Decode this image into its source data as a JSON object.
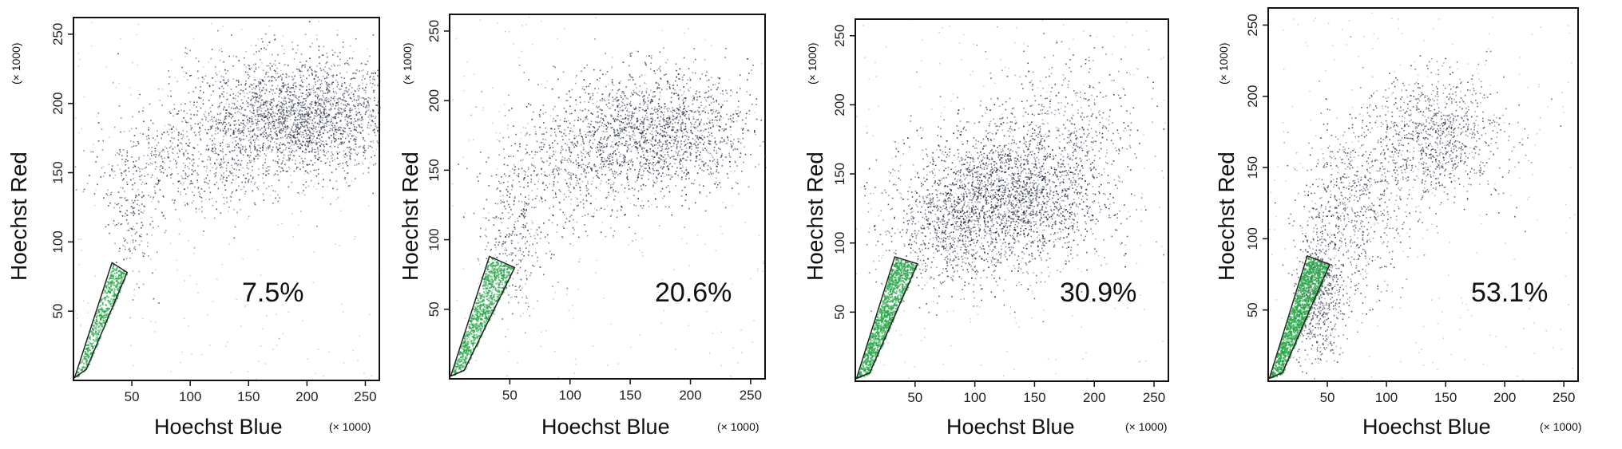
{
  "chart_data": [
    {
      "type": "scatter",
      "xlabel": "Hoechst Blue",
      "ylabel": "Hoechst Red",
      "x_multiplier": "(× 1000)",
      "y_multiplier": "(× 1000)",
      "xlim": [
        0,
        262
      ],
      "ylim": [
        0,
        262
      ],
      "xticks": [
        50,
        100,
        150,
        200,
        250
      ],
      "yticks": [
        50,
        100,
        150,
        200,
        250
      ],
      "gate_percent": "7.5%",
      "gate_polygon": [
        [
          1,
          2
        ],
        [
          33,
          85
        ],
        [
          46,
          78
        ],
        [
          11,
          8
        ]
      ],
      "gate_color": "#2aa84a",
      "dot_color": "#1f2430",
      "clusters": [
        {
          "center": [
            190,
            190
          ],
          "spread": [
            45,
            22
          ],
          "count": 2600
        },
        {
          "center": [
            95,
            155
          ],
          "spread": [
            40,
            20
          ],
          "count": 500
        },
        {
          "center": [
            50,
            120
          ],
          "spread": [
            10,
            25
          ],
          "count": 180
        }
      ]
    },
    {
      "type": "scatter",
      "xlabel": "Hoechst Blue",
      "ylabel": "Hoechst Red",
      "x_multiplier": "(× 1000)",
      "y_multiplier": "(× 1000)",
      "xlim": [
        0,
        262
      ],
      "ylim": [
        0,
        262
      ],
      "xticks": [
        50,
        100,
        150,
        200,
        250
      ],
      "yticks": [
        50,
        100,
        150,
        200,
        250
      ],
      "gate_percent": "20.6%",
      "gate_polygon": [
        [
          1,
          2
        ],
        [
          33,
          88
        ],
        [
          54,
          80
        ],
        [
          12,
          6
        ]
      ],
      "gate_color": "#2aa84a",
      "dot_color": "#1f2430",
      "clusters": [
        {
          "center": [
            170,
            178
          ],
          "spread": [
            40,
            22
          ],
          "count": 2000
        },
        {
          "center": [
            95,
            150
          ],
          "spread": [
            30,
            25
          ],
          "count": 500
        },
        {
          "center": [
            50,
            100
          ],
          "spread": [
            12,
            30
          ],
          "count": 300
        }
      ]
    },
    {
      "type": "scatter",
      "xlabel": "Hoechst Blue",
      "ylabel": "Hoechst Red",
      "x_multiplier": "(× 1000)",
      "y_multiplier": "(× 1000)",
      "xlim": [
        0,
        262
      ],
      "ylim": [
        0,
        262
      ],
      "xticks": [
        50,
        100,
        150,
        200,
        250
      ],
      "yticks": [
        50,
        100,
        150,
        200,
        250
      ],
      "gate_percent": "30.9%",
      "gate_polygon": [
        [
          1,
          2
        ],
        [
          33,
          90
        ],
        [
          52,
          85
        ],
        [
          12,
          6
        ]
      ],
      "gate_color": "#2aa84a",
      "dot_color": "#1f2430",
      "clusters": [
        {
          "center": [
            130,
            135
          ],
          "spread": [
            40,
            25
          ],
          "count": 2600
        },
        {
          "center": [
            80,
            110
          ],
          "spread": [
            30,
            22
          ],
          "count": 700
        },
        {
          "center": [
            175,
            190
          ],
          "spread": [
            35,
            25
          ],
          "count": 400
        }
      ]
    },
    {
      "type": "scatter",
      "xlabel": "Hoechst Blue",
      "ylabel": "Hoechst Red",
      "x_multiplier": "(× 1000)",
      "y_multiplier": "(× 1000)",
      "xlim": [
        0,
        262
      ],
      "ylim": [
        0,
        262
      ],
      "xticks": [
        50,
        100,
        150,
        200,
        250
      ],
      "yticks": [
        50,
        100,
        150,
        200,
        250
      ],
      "gate_percent": "53.1%",
      "gate_polygon": [
        [
          1,
          2
        ],
        [
          33,
          88
        ],
        [
          52,
          82
        ],
        [
          12,
          6
        ]
      ],
      "gate_color": "#2aa84a",
      "dot_color": "#1f2430",
      "clusters": [
        {
          "center": [
            140,
            172
          ],
          "spread": [
            30,
            22
          ],
          "count": 1000
        },
        {
          "center": [
            70,
            120
          ],
          "spread": [
            22,
            30
          ],
          "count": 700
        },
        {
          "center": [
            42,
            60
          ],
          "spread": [
            10,
            25
          ],
          "count": 600
        }
      ]
    }
  ]
}
